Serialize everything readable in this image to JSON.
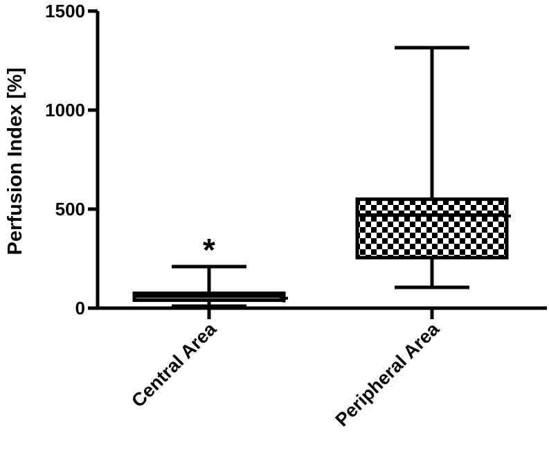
{
  "chart_data": {
    "type": "box",
    "ylabel": "Perfusion Index [%]",
    "xlabel": "",
    "title": "",
    "ylim": [
      0,
      1500
    ],
    "yticks": [
      0,
      500,
      1000,
      1500
    ],
    "categories": [
      "Central Area",
      "Peripheral Area"
    ],
    "boxes": [
      {
        "category": "Central Area",
        "min": 10,
        "q1": 40,
        "median": 60,
        "q3": 75,
        "max": 210,
        "mean": 50,
        "fill": "white",
        "annotation": "*"
      },
      {
        "category": "Peripheral Area",
        "min": 105,
        "q1": 255,
        "median": 470,
        "q3": 550,
        "max": 1315,
        "mean": 465,
        "fill": "checkered"
      }
    ]
  }
}
